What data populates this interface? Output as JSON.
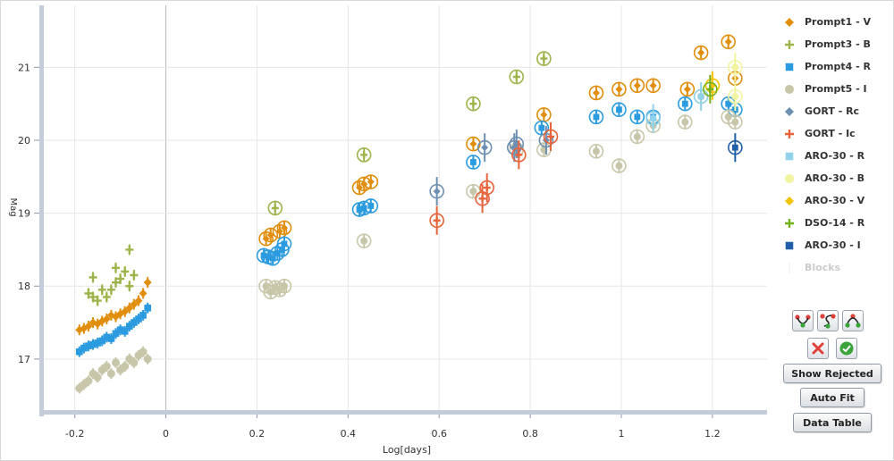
{
  "chart_data": {
    "type": "scatter",
    "title": "",
    "xlabel": "Log[days]",
    "ylabel": "Mag",
    "xlim": [
      -0.27,
      1.32
    ],
    "ylim": [
      21.85,
      16.3
    ],
    "y_inverted": true,
    "x_ticks": [
      "-0.2",
      "0",
      "0.2",
      "0.4",
      "0.6",
      "0.8",
      "1",
      "1.2"
    ],
    "y_ticks": [
      "17",
      "18",
      "19",
      "20",
      "21"
    ],
    "grid": true,
    "legend_position": "right",
    "series": [
      {
        "name": "Prompt1 - V",
        "color": "#e08e0b",
        "marker": "diamond",
        "x": [
          -0.19,
          -0.18,
          -0.17,
          -0.16,
          -0.15,
          -0.14,
          -0.13,
          -0.12,
          -0.11,
          -0.1,
          -0.09,
          -0.08,
          -0.07,
          -0.06,
          -0.05,
          -0.04,
          0.22,
          0.23,
          0.25,
          0.26,
          0.425,
          0.435,
          0.45,
          0.675,
          0.83,
          0.945,
          0.995,
          1.035,
          1.07,
          1.145,
          1.175,
          1.235,
          1.25
        ],
        "y": [
          17.4,
          17.42,
          17.45,
          17.5,
          17.48,
          17.52,
          17.55,
          17.6,
          17.58,
          17.62,
          17.65,
          17.7,
          17.75,
          17.8,
          17.9,
          18.05,
          18.65,
          18.7,
          18.75,
          18.8,
          19.35,
          19.4,
          19.43,
          19.95,
          20.35,
          20.65,
          20.7,
          20.75,
          20.75,
          20.7,
          21.2,
          21.35,
          20.85
        ]
      },
      {
        "name": "Prompt3 - B",
        "color": "#9cb449",
        "marker": "plus",
        "x": [
          -0.17,
          -0.16,
          -0.15,
          -0.14,
          -0.13,
          -0.12,
          -0.11,
          -0.1,
          -0.09,
          -0.08,
          -0.07,
          -0.16,
          -0.11,
          -0.08,
          0.24,
          0.435,
          0.675,
          0.77,
          0.83
        ],
        "y": [
          17.9,
          17.85,
          17.8,
          17.95,
          17.85,
          17.95,
          18.05,
          18.1,
          18.2,
          18.0,
          18.15,
          18.12,
          18.25,
          18.5,
          19.07,
          19.8,
          20.5,
          20.87,
          21.12
        ]
      },
      {
        "name": "Prompt4 - R",
        "color": "#2b9be0",
        "marker": "square",
        "x": [
          -0.19,
          -0.18,
          -0.17,
          -0.16,
          -0.15,
          -0.14,
          -0.13,
          -0.12,
          -0.11,
          -0.1,
          -0.09,
          -0.08,
          -0.07,
          -0.06,
          -0.05,
          -0.04,
          0.215,
          0.225,
          0.235,
          0.245,
          0.255,
          0.26,
          0.425,
          0.435,
          0.45,
          0.675,
          0.825,
          0.945,
          0.995,
          1.035,
          1.07,
          1.14,
          1.235,
          1.25
        ],
        "y": [
          17.1,
          17.15,
          17.18,
          17.2,
          17.22,
          17.25,
          17.3,
          17.28,
          17.35,
          17.4,
          17.38,
          17.45,
          17.5,
          17.55,
          17.6,
          17.7,
          18.42,
          18.4,
          18.38,
          18.45,
          18.5,
          18.58,
          19.05,
          19.07,
          19.1,
          19.7,
          20.17,
          20.32,
          20.42,
          20.32,
          20.32,
          20.5,
          20.5,
          20.42
        ]
      },
      {
        "name": "Prompt5 - I",
        "color": "#c8c6a8",
        "marker": "circle",
        "x": [
          -0.19,
          -0.18,
          -0.17,
          -0.16,
          -0.15,
          -0.14,
          -0.13,
          -0.12,
          -0.11,
          -0.1,
          -0.09,
          -0.08,
          -0.07,
          -0.06,
          -0.05,
          -0.04,
          0.22,
          0.23,
          0.24,
          0.25,
          0.26,
          0.435,
          0.675,
          0.77,
          0.83,
          0.945,
          0.995,
          1.035,
          1.07,
          1.14,
          1.175,
          1.235,
          1.25
        ],
        "y": [
          16.6,
          16.65,
          16.7,
          16.8,
          16.75,
          16.85,
          16.9,
          16.8,
          16.95,
          16.85,
          16.9,
          17.0,
          16.95,
          17.05,
          17.1,
          17.0,
          18.0,
          17.92,
          17.98,
          17.95,
          18.0,
          18.62,
          19.3,
          19.87,
          19.87,
          19.85,
          19.65,
          20.05,
          20.2,
          20.25,
          20.6,
          20.32,
          20.25
        ]
      },
      {
        "name": "GORT - Rc",
        "color": "#6d8fb1",
        "marker": "diamond",
        "x": [
          0.595,
          0.7,
          0.765,
          0.77,
          0.835
        ],
        "y": [
          19.3,
          19.9,
          19.9,
          19.95,
          20.0
        ]
      },
      {
        "name": "GORT - Ic",
        "color": "#e8623a",
        "marker": "plus",
        "x": [
          0.595,
          0.695,
          0.705,
          0.775,
          0.845
        ],
        "y": [
          18.9,
          19.2,
          19.35,
          19.8,
          20.05
        ]
      },
      {
        "name": "ARO-30 - R",
        "color": "#8fd2ea",
        "marker": "square",
        "x": [
          1.07,
          1.175
        ],
        "y": [
          20.3,
          20.6
        ]
      },
      {
        "name": "ARO-30 - B",
        "color": "#f2f5a0",
        "marker": "circle",
        "x": [
          1.25,
          1.25
        ],
        "y": [
          20.6,
          21.0
        ]
      },
      {
        "name": "ARO-30 - V",
        "color": "#f5c400",
        "marker": "diamond",
        "x": [
          1.2
        ],
        "y": [
          20.75
        ]
      },
      {
        "name": "DSO-14 - R",
        "color": "#74b01a",
        "marker": "plus",
        "x": [
          1.195
        ],
        "y": [
          20.7
        ]
      },
      {
        "name": "ARO-30 - I",
        "color": "#1f5fa8",
        "marker": "square",
        "x": [
          1.25
        ],
        "y": [
          19.9
        ]
      },
      {
        "name": "Blocks",
        "color": "#cccccc",
        "marker": "none",
        "hidden": true,
        "x": [],
        "y": []
      }
    ]
  },
  "buttons": {
    "show_rejected": "Show Rejected",
    "auto_fit": "Auto Fit",
    "data_table": "Data Table"
  },
  "icons": {
    "fit_a": "fit-curve-down-icon",
    "fit_b": "fit-curve-s-icon",
    "fit_c": "fit-curve-up-icon",
    "reject": "reject-x-icon",
    "accept": "accept-check-icon"
  },
  "colors": {
    "axis_band": "#c3ccd8",
    "grid": "#e6e6e6",
    "zero_line": "#b8b8b8",
    "reject_red": "#e0403a",
    "accept_green": "#3aa33a"
  }
}
